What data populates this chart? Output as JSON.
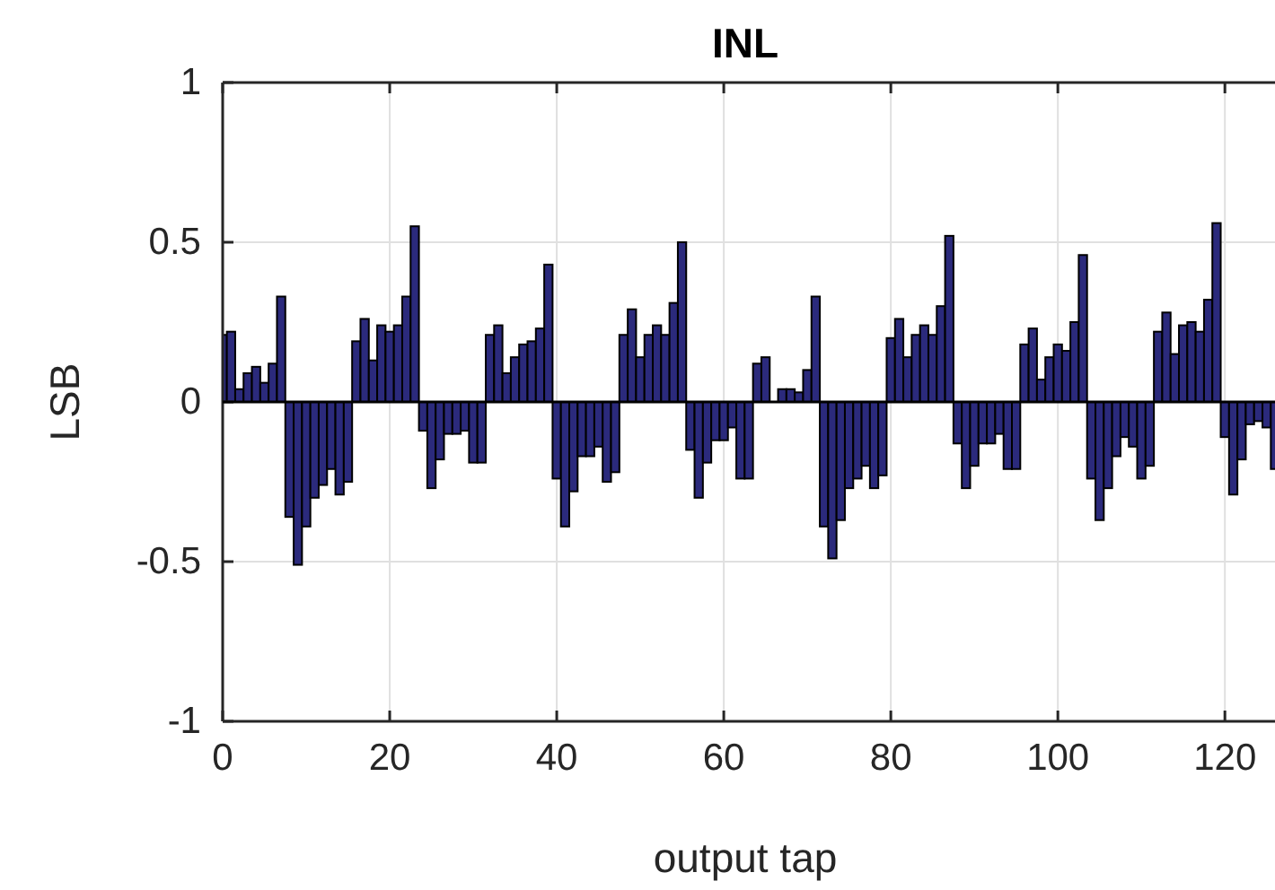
{
  "chart_data": {
    "type": "bar",
    "title": "INL",
    "xlabel": "output tap",
    "ylabel": "LSB",
    "x": [
      0,
      1,
      2,
      3,
      4,
      5,
      6,
      7,
      8,
      9,
      10,
      11,
      12,
      13,
      14,
      15,
      16,
      17,
      18,
      19,
      20,
      21,
      22,
      23,
      24,
      25,
      26,
      27,
      28,
      29,
      30,
      31,
      32,
      33,
      34,
      35,
      36,
      37,
      38,
      39,
      40,
      41,
      42,
      43,
      44,
      45,
      46,
      47,
      48,
      49,
      50,
      51,
      52,
      53,
      54,
      55,
      56,
      57,
      58,
      59,
      60,
      61,
      62,
      63,
      64,
      65,
      66,
      67,
      68,
      69,
      70,
      71,
      72,
      73,
      74,
      75,
      76,
      77,
      78,
      79,
      80,
      81,
      82,
      83,
      84,
      85,
      86,
      87,
      88,
      89,
      90,
      91,
      92,
      93,
      94,
      95,
      96,
      97,
      98,
      99,
      100,
      101,
      102,
      103,
      104,
      105,
      106,
      107,
      108,
      109,
      110,
      111,
      112,
      113,
      114,
      115,
      116,
      117,
      118,
      119,
      120,
      121,
      122,
      123,
      124,
      125,
      126
    ],
    "values": [
      0.21,
      0.22,
      0.04,
      0.09,
      0.11,
      0.06,
      0.12,
      0.33,
      -0.36,
      -0.51,
      -0.39,
      -0.3,
      -0.26,
      -0.21,
      -0.29,
      -0.25,
      0.19,
      0.26,
      0.13,
      0.24,
      0.22,
      0.24,
      0.33,
      0.55,
      -0.09,
      -0.27,
      -0.18,
      -0.1,
      -0.1,
      -0.09,
      -0.19,
      -0.19,
      0.21,
      0.24,
      0.09,
      0.14,
      0.18,
      0.19,
      0.23,
      0.43,
      -0.24,
      -0.39,
      -0.28,
      -0.17,
      -0.17,
      -0.14,
      -0.25,
      -0.22,
      0.21,
      0.29,
      0.14,
      0.21,
      0.24,
      0.21,
      0.31,
      0.5,
      -0.15,
      -0.3,
      -0.19,
      -0.12,
      -0.12,
      -0.08,
      -0.24,
      -0.24,
      0.12,
      0.14,
      0,
      0.04,
      0.04,
      0.03,
      0.1,
      0.33,
      -0.39,
      -0.49,
      -0.37,
      -0.27,
      -0.24,
      -0.2,
      -0.27,
      -0.23,
      0.2,
      0.26,
      0.14,
      0.21,
      0.24,
      0.21,
      0.3,
      0.52,
      -0.13,
      -0.27,
      -0.2,
      -0.13,
      -0.13,
      -0.1,
      -0.21,
      -0.21,
      0.18,
      0.23,
      0.07,
      0.14,
      0.18,
      0.16,
      0.25,
      0.46,
      -0.24,
      -0.37,
      -0.27,
      -0.17,
      -0.11,
      -0.14,
      -0.24,
      -0.2,
      0.22,
      0.28,
      0.15,
      0.24,
      0.25,
      0.22,
      0.32,
      0.56,
      -0.11,
      -0.29,
      -0.18,
      -0.07,
      -0.06,
      -0.08,
      -0.21
    ],
    "color": "#2b2a7c",
    "xlim": [
      0,
      126
    ],
    "xticks": [
      0,
      20,
      40,
      60,
      80,
      100,
      120
    ],
    "ylim": [
      -1,
      1
    ],
    "yticks": [
      {
        "value": -1,
        "label": "-1"
      },
      {
        "value": -0.5,
        "label": "-0.5"
      },
      0,
      0.5,
      1
    ],
    "grid": true
  }
}
